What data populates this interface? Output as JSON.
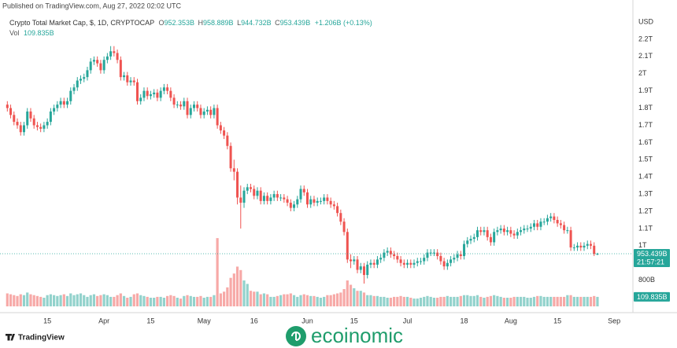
{
  "chart_data": {
    "type": "candlestick",
    "source": "Published on TradingView.com, Aug 27, 2022 02:02 UTC",
    "legend": {
      "symbol": "Crypto Total Market Cap, $, 1D, CRYPTOCAP",
      "items": [
        {
          "key": "O",
          "value": "952.353B"
        },
        {
          "key": "H",
          "value": "958.889B"
        },
        {
          "key": "L",
          "value": "944.732B"
        },
        {
          "key": "C",
          "value": "953.439B"
        }
      ],
      "change": "+1.206B (+0.13%)",
      "vol_key": "Vol",
      "vol_value": "109.835B"
    },
    "currency": "USD",
    "last_price_label": "953.439B",
    "countdown": "21:57:21",
    "last_volume_label": "109.835B",
    "up_color": "#26a69a",
    "down_color": "#ef5350",
    "grid": false,
    "ylim": [
      0.602,
      2.428
    ],
    "yticks": [
      {
        "value": 0.8,
        "label": "800B"
      },
      {
        "value": 1.0,
        "label": "1T"
      },
      {
        "value": 1.1,
        "label": "1.1T"
      },
      {
        "value": 1.2,
        "label": "1.2T"
      },
      {
        "value": 1.3,
        "label": "1.3T"
      },
      {
        "value": 1.4,
        "label": "1.4T"
      },
      {
        "value": 1.5,
        "label": "1.5T"
      },
      {
        "value": 1.6,
        "label": "1.6T"
      },
      {
        "value": 1.7,
        "label": "1.7T"
      },
      {
        "value": 1.8,
        "label": "1.8T"
      },
      {
        "value": 1.9,
        "label": "1.9T"
      },
      {
        "value": 2.0,
        "label": "2T"
      },
      {
        "value": 2.1,
        "label": "2.1T"
      },
      {
        "value": 2.2,
        "label": "2.2T"
      }
    ],
    "xlim": [
      -2.2,
      187.4
    ],
    "xticks": [
      {
        "value": 12,
        "label": "15"
      },
      {
        "value": 29,
        "label": "Apr"
      },
      {
        "value": 43,
        "label": "15"
      },
      {
        "value": 59,
        "label": "May"
      },
      {
        "value": 74,
        "label": "16"
      },
      {
        "value": 90,
        "label": "Jun"
      },
      {
        "value": 104,
        "label": "15"
      },
      {
        "value": 120,
        "label": "Jul"
      },
      {
        "value": 137,
        "label": "18"
      },
      {
        "value": 151,
        "label": "Aug"
      },
      {
        "value": 165,
        "label": "15"
      },
      {
        "value": 182,
        "label": "Sep"
      }
    ],
    "vol_ylim": [
      0,
      1000
    ],
    "open": [
      1.82,
      1.8,
      1.76,
      1.72,
      1.7,
      1.66,
      1.7,
      1.78,
      1.74,
      1.7,
      1.69,
      1.68,
      1.7,
      1.72,
      1.78,
      1.8,
      1.82,
      1.84,
      1.82,
      1.84,
      1.9,
      1.92,
      1.96,
      1.97,
      1.98,
      2.02,
      2.07,
      2.08,
      2.06,
      2.02,
      2.08,
      2.1,
      2.13,
      2.12,
      2.08,
      1.98,
      1.99,
      1.95,
      1.96,
      1.95,
      1.84,
      1.86,
      1.9,
      1.87,
      1.88,
      1.89,
      1.86,
      1.9,
      1.92,
      1.9,
      1.86,
      1.82,
      1.82,
      1.81,
      1.84,
      1.76,
      1.8,
      1.82,
      1.8,
      1.76,
      1.78,
      1.79,
      1.76,
      1.8,
      1.7,
      1.67,
      1.64,
      1.58,
      1.45,
      1.43,
      1.28,
      1.25,
      1.32,
      1.34,
      1.33,
      1.29,
      1.32,
      1.26,
      1.29,
      1.26,
      1.28,
      1.3,
      1.28,
      1.28,
      1.27,
      1.25,
      1.22,
      1.24,
      1.27,
      1.33,
      1.31,
      1.24,
      1.27,
      1.25,
      1.26,
      1.26,
      1.28,
      1.26,
      1.24,
      1.23,
      1.19,
      1.14,
      1.08,
      0.92,
      0.91,
      0.92,
      0.86,
      0.88,
      0.83,
      0.89,
      0.9,
      0.89,
      0.92,
      0.93,
      0.96,
      0.97,
      0.95,
      0.94,
      0.92,
      0.9,
      0.89,
      0.9,
      0.89,
      0.9,
      0.91,
      0.91,
      0.93,
      0.96,
      0.96,
      0.96,
      0.94,
      0.91,
      0.88,
      0.9,
      0.92,
      0.93,
      0.95,
      0.94,
      1.01,
      1.03,
      1.04,
      1.05,
      1.09,
      1.08,
      1.09,
      1.05,
      1.02,
      1.08,
      1.09,
      1.1,
      1.08,
      1.09,
      1.07,
      1.06,
      1.08,
      1.09,
      1.1,
      1.1,
      1.11,
      1.13,
      1.11,
      1.14,
      1.14,
      1.16,
      1.17,
      1.15,
      1.13,
      1.12,
      1.09,
      1.09,
      0.99,
      0.99,
      1.0,
      0.99,
      1.0,
      1.01,
      1.0,
      0.952353
    ],
    "high": [
      1.84,
      1.82,
      1.78,
      1.74,
      1.72,
      1.72,
      1.8,
      1.8,
      1.76,
      1.72,
      1.71,
      1.72,
      1.74,
      1.8,
      1.82,
      1.84,
      1.86,
      1.86,
      1.86,
      1.92,
      1.94,
      1.98,
      1.99,
      2.0,
      2.04,
      2.09,
      2.1,
      2.1,
      2.08,
      2.1,
      2.12,
      2.16,
      2.16,
      2.14,
      2.1,
      2.01,
      2.01,
      1.98,
      1.98,
      1.97,
      1.88,
      1.92,
      1.92,
      1.9,
      1.91,
      1.91,
      1.92,
      1.94,
      1.94,
      1.92,
      1.88,
      1.84,
      1.84,
      1.86,
      1.86,
      1.82,
      1.84,
      1.84,
      1.82,
      1.8,
      1.81,
      1.81,
      1.82,
      1.82,
      1.72,
      1.69,
      1.66,
      1.6,
      1.5,
      1.45,
      1.35,
      1.34,
      1.36,
      1.36,
      1.35,
      1.34,
      1.34,
      1.31,
      1.31,
      1.3,
      1.32,
      1.32,
      1.3,
      1.3,
      1.29,
      1.27,
      1.26,
      1.29,
      1.35,
      1.35,
      1.33,
      1.29,
      1.29,
      1.28,
      1.28,
      1.3,
      1.3,
      1.28,
      1.26,
      1.25,
      1.21,
      1.16,
      1.1,
      0.95,
      0.94,
      0.94,
      0.9,
      0.9,
      0.91,
      0.92,
      0.92,
      0.94,
      0.95,
      0.98,
      0.99,
      0.99,
      0.97,
      0.96,
      0.94,
      0.92,
      0.92,
      0.92,
      0.92,
      0.93,
      0.93,
      0.95,
      0.98,
      0.98,
      0.98,
      0.98,
      0.96,
      0.93,
      0.92,
      0.94,
      0.95,
      0.97,
      0.97,
      1.03,
      1.05,
      1.06,
      1.07,
      1.11,
      1.11,
      1.11,
      1.11,
      1.07,
      1.1,
      1.11,
      1.12,
      1.12,
      1.11,
      1.11,
      1.09,
      1.1,
      1.11,
      1.12,
      1.12,
      1.13,
      1.15,
      1.15,
      1.16,
      1.16,
      1.18,
      1.19,
      1.19,
      1.17,
      1.15,
      1.14,
      1.11,
      1.11,
      1.01,
      1.02,
      1.02,
      1.02,
      1.03,
      1.03,
      1.02,
      0.958889
    ],
    "low": [
      1.78,
      1.74,
      1.7,
      1.68,
      1.64,
      1.64,
      1.68,
      1.72,
      1.68,
      1.67,
      1.66,
      1.66,
      1.68,
      1.7,
      1.76,
      1.78,
      1.8,
      1.8,
      1.8,
      1.82,
      1.88,
      1.9,
      1.94,
      1.95,
      1.96,
      2.0,
      2.05,
      2.04,
      2.0,
      2.0,
      2.06,
      2.08,
      2.1,
      2.06,
      1.96,
      1.96,
      1.93,
      1.93,
      1.93,
      1.82,
      1.82,
      1.84,
      1.85,
      1.85,
      1.86,
      1.84,
      1.84,
      1.88,
      1.88,
      1.84,
      1.8,
      1.8,
      1.79,
      1.79,
      1.74,
      1.74,
      1.78,
      1.78,
      1.74,
      1.74,
      1.76,
      1.74,
      1.74,
      1.68,
      1.65,
      1.62,
      1.56,
      1.43,
      1.38,
      1.24,
      1.1,
      1.22,
      1.3,
      1.31,
      1.27,
      1.27,
      1.24,
      1.24,
      1.24,
      1.24,
      1.26,
      1.26,
      1.26,
      1.25,
      1.23,
      1.2,
      1.2,
      1.22,
      1.25,
      1.29,
      1.22,
      1.22,
      1.23,
      1.23,
      1.24,
      1.24,
      1.24,
      1.22,
      1.21,
      1.17,
      1.12,
      1.06,
      0.9,
      0.87,
      0.89,
      0.84,
      0.84,
      0.78,
      0.81,
      0.87,
      0.87,
      0.87,
      0.9,
      0.91,
      0.94,
      0.93,
      0.92,
      0.9,
      0.88,
      0.87,
      0.87,
      0.87,
      0.87,
      0.88,
      0.89,
      0.89,
      0.91,
      0.94,
      0.94,
      0.92,
      0.89,
      0.86,
      0.86,
      0.88,
      0.9,
      0.91,
      0.92,
      0.92,
      0.99,
      1.01,
      1.02,
      1.03,
      1.06,
      1.06,
      1.03,
      1.0,
      1.0,
      1.06,
      1.07,
      1.06,
      1.06,
      1.05,
      1.04,
      1.04,
      1.06,
      1.07,
      1.08,
      1.08,
      1.09,
      1.09,
      1.09,
      1.12,
      1.12,
      1.14,
      1.13,
      1.11,
      1.1,
      1.07,
      1.07,
      0.97,
      0.97,
      0.97,
      0.97,
      0.97,
      0.98,
      0.98,
      0.94,
      0.944732
    ],
    "close": [
      1.8,
      1.76,
      1.72,
      1.7,
      1.66,
      1.7,
      1.78,
      1.74,
      1.7,
      1.69,
      1.68,
      1.7,
      1.72,
      1.78,
      1.8,
      1.82,
      1.84,
      1.82,
      1.84,
      1.9,
      1.92,
      1.96,
      1.97,
      1.98,
      2.02,
      2.07,
      2.08,
      2.06,
      2.02,
      2.08,
      2.1,
      2.13,
      2.12,
      2.08,
      1.98,
      1.99,
      1.95,
      1.96,
      1.95,
      1.84,
      1.86,
      1.9,
      1.87,
      1.88,
      1.89,
      1.86,
      1.9,
      1.92,
      1.9,
      1.86,
      1.82,
      1.82,
      1.81,
      1.84,
      1.76,
      1.8,
      1.82,
      1.8,
      1.76,
      1.78,
      1.79,
      1.76,
      1.8,
      1.7,
      1.67,
      1.64,
      1.58,
      1.45,
      1.43,
      1.28,
      1.25,
      1.32,
      1.34,
      1.33,
      1.29,
      1.32,
      1.26,
      1.29,
      1.26,
      1.28,
      1.3,
      1.28,
      1.28,
      1.27,
      1.25,
      1.22,
      1.24,
      1.27,
      1.33,
      1.31,
      1.24,
      1.27,
      1.25,
      1.26,
      1.26,
      1.28,
      1.26,
      1.24,
      1.23,
      1.19,
      1.14,
      1.08,
      0.92,
      0.91,
      0.92,
      0.86,
      0.88,
      0.83,
      0.89,
      0.9,
      0.89,
      0.92,
      0.93,
      0.96,
      0.97,
      0.95,
      0.94,
      0.92,
      0.9,
      0.89,
      0.9,
      0.89,
      0.9,
      0.91,
      0.91,
      0.93,
      0.96,
      0.96,
      0.96,
      0.94,
      0.91,
      0.88,
      0.9,
      0.92,
      0.93,
      0.95,
      0.94,
      1.01,
      1.03,
      1.04,
      1.05,
      1.09,
      1.08,
      1.09,
      1.05,
      1.02,
      1.08,
      1.09,
      1.1,
      1.08,
      1.09,
      1.07,
      1.06,
      1.08,
      1.09,
      1.1,
      1.1,
      1.11,
      1.13,
      1.11,
      1.14,
      1.14,
      1.16,
      1.17,
      1.15,
      1.13,
      1.12,
      1.09,
      1.09,
      0.99,
      0.99,
      1.0,
      0.99,
      1.0,
      1.01,
      1.0,
      0.952,
      0.953439
    ],
    "volume": [
      150,
      140,
      130,
      120,
      140,
      130,
      160,
      140,
      130,
      120,
      110,
      100,
      130,
      140,
      130,
      120,
      130,
      140,
      120,
      150,
      130,
      140,
      150,
      130,
      110,
      130,
      140,
      120,
      130,
      140,
      130,
      110,
      110,
      130,
      150,
      120,
      100,
      110,
      140,
      150,
      130,
      120,
      110,
      100,
      100,
      110,
      110,
      100,
      120,
      130,
      120,
      100,
      90,
      120,
      130,
      120,
      110,
      110,
      120,
      100,
      110,
      110,
      130,
      790,
      150,
      170,
      220,
      330,
      380,
      460,
      420,
      300,
      260,
      180,
      170,
      170,
      140,
      150,
      140,
      110,
      110,
      120,
      130,
      140,
      140,
      150,
      130,
      110,
      130,
      140,
      130,
      120,
      120,
      110,
      100,
      110,
      130,
      130,
      140,
      150,
      160,
      200,
      300,
      250,
      210,
      180,
      180,
      160,
      130,
      130,
      120,
      120,
      110,
      110,
      100,
      100,
      110,
      110,
      120,
      110,
      110,
      100,
      90,
      90,
      100,
      110,
      120,
      110,
      100,
      100,
      110,
      110,
      120,
      110,
      110,
      110,
      120,
      130,
      130,
      120,
      120,
      130,
      110,
      100,
      110,
      120,
      130,
      120,
      110,
      100,
      100,
      100,
      110,
      110,
      110,
      110,
      100,
      100,
      110,
      120,
      120,
      110,
      110,
      110,
      110,
      110,
      110,
      110,
      130,
      130,
      110,
      110,
      110,
      110,
      110,
      110,
      120,
      109.835
    ]
  },
  "footer": {
    "brand": "TradingView",
    "watermark": "ecoinomic"
  }
}
